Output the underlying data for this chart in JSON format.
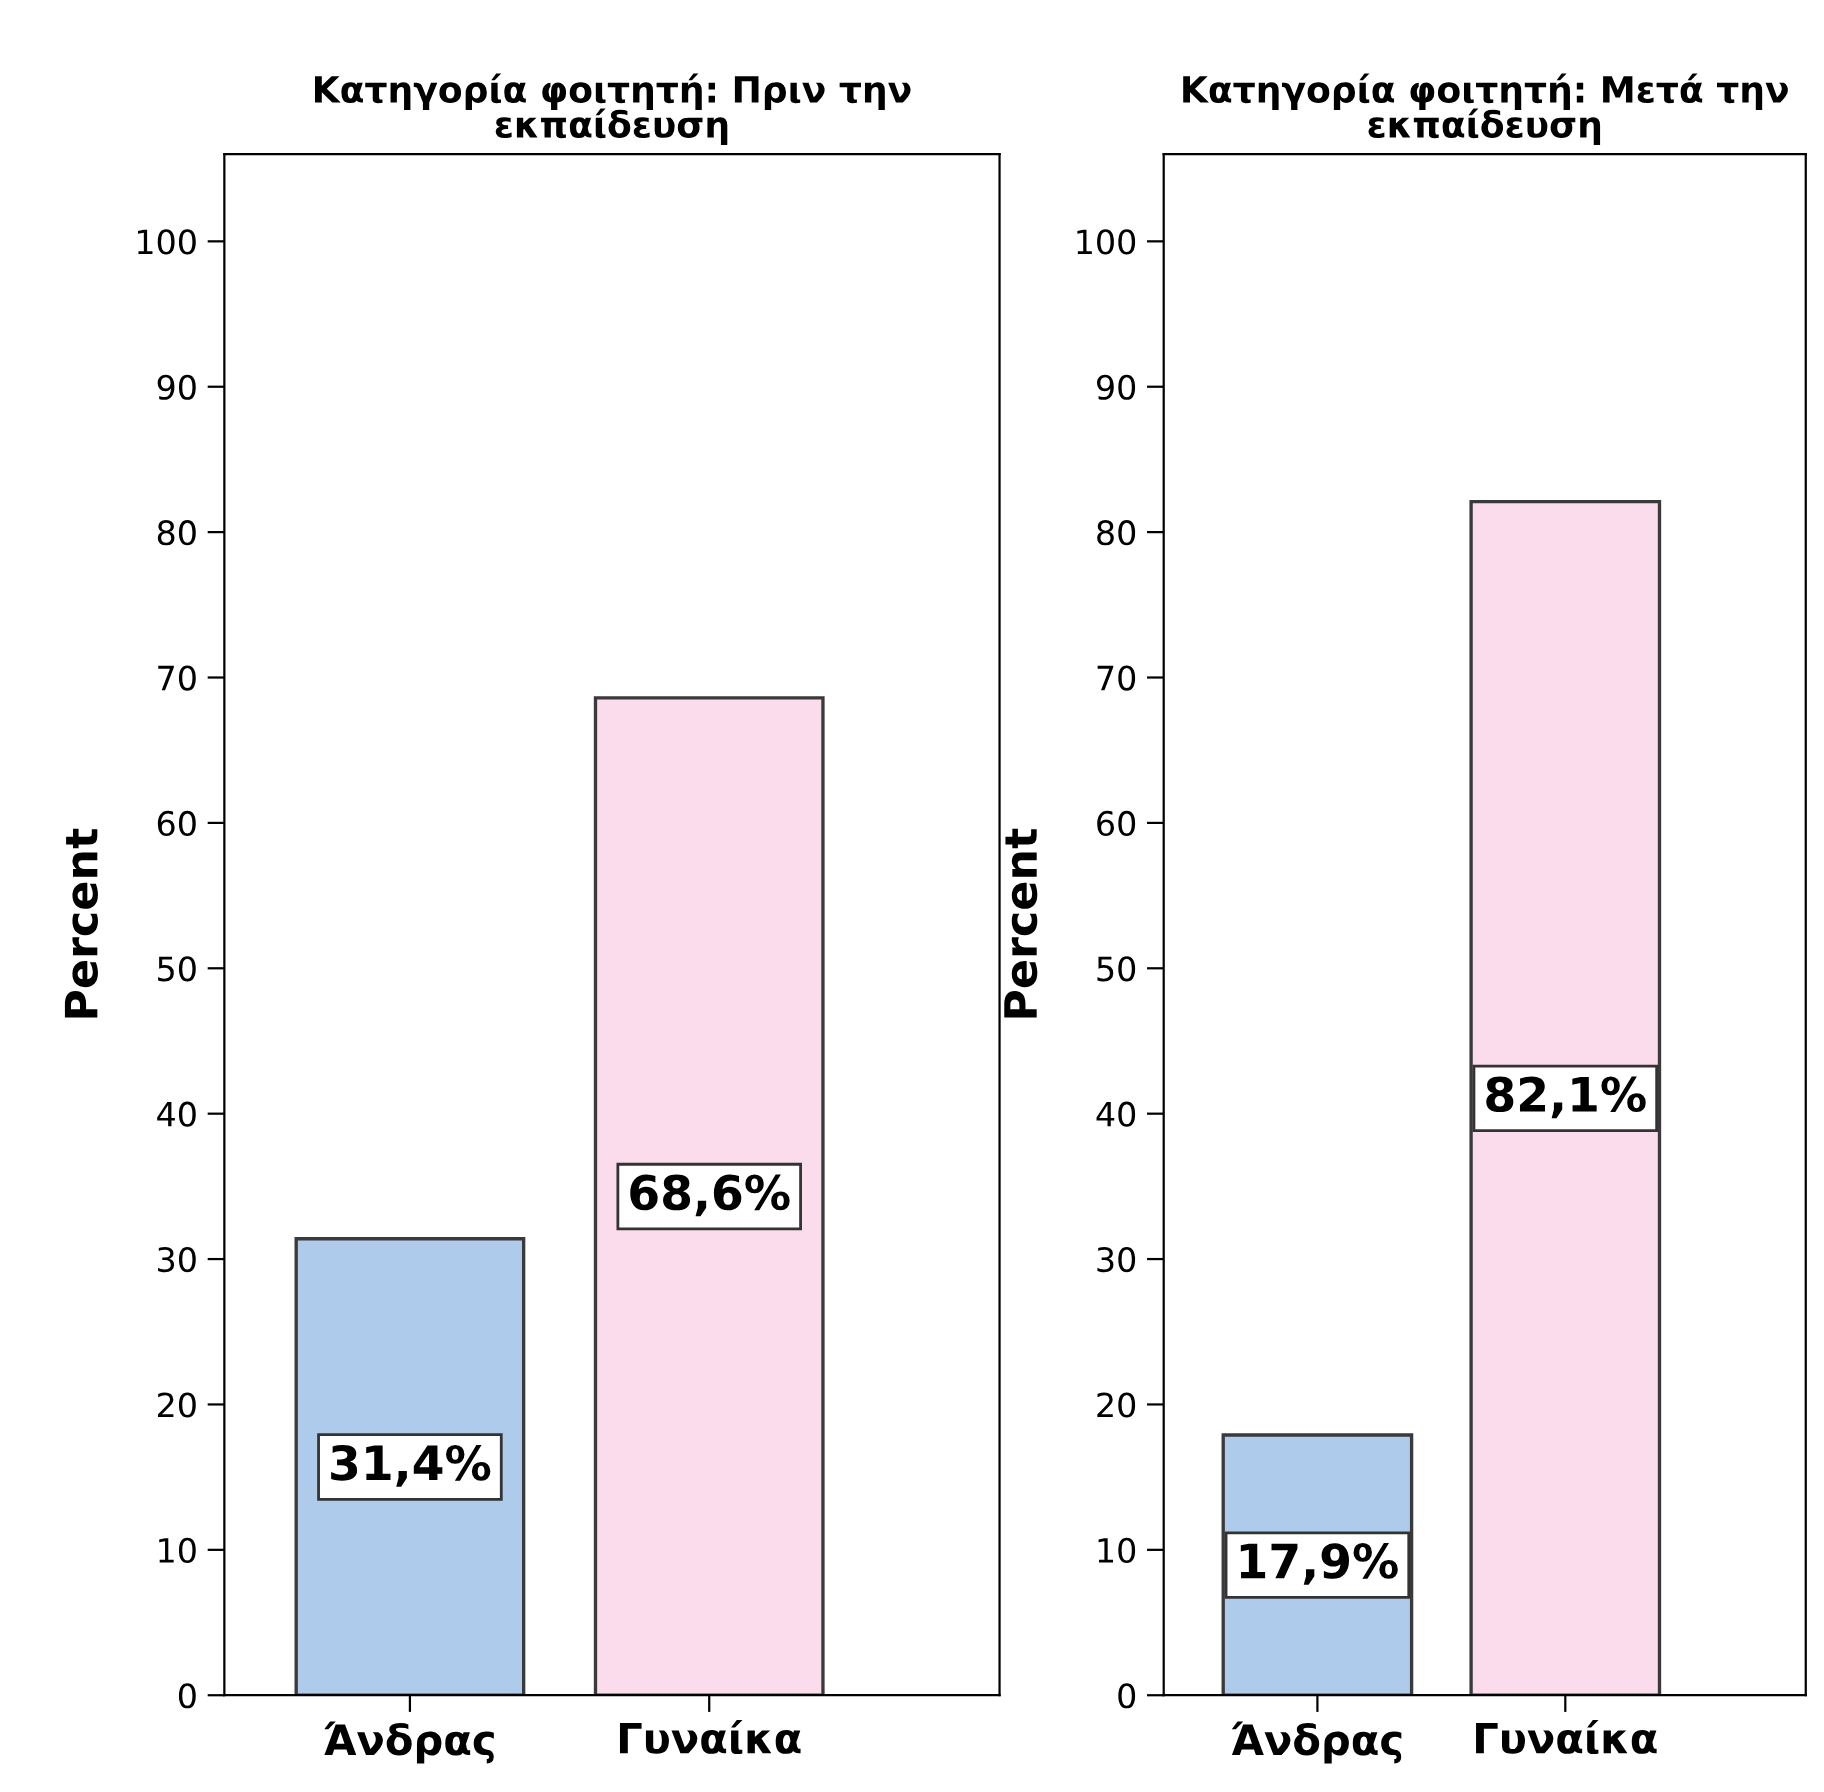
{
  "chart_data": [
    {
      "type": "bar",
      "title": "Κατηγορία φοιτητή: Πριν την\nεκπαίδευση",
      "ylabel": "Percent",
      "categories": [
        "Άνδρας",
        "Γυναίκα"
      ],
      "values": [
        31.4,
        68.6
      ],
      "colors": [
        "#aecbeb",
        "#fbdcec"
      ],
      "value_labels": [
        "31,4%",
        "68,6%"
      ],
      "ylim": [
        0,
        106
      ],
      "yticks": [
        0,
        10,
        20,
        30,
        40,
        50,
        60,
        70,
        80,
        90,
        100
      ],
      "grid": false,
      "legend": false
    },
    {
      "type": "bar",
      "title": "Κατηγορία φοιτητή: Μετά την\nεκπαίδευση",
      "ylabel": "Percent",
      "categories": [
        "Άνδρας",
        "Γυναίκα"
      ],
      "values": [
        17.9,
        82.1
      ],
      "colors": [
        "#aecbeb",
        "#fbdcec"
      ],
      "value_labels": [
        "17,9%",
        "82,1%"
      ],
      "ylim": [
        0,
        106
      ],
      "yticks": [
        0,
        10,
        20,
        30,
        40,
        50,
        60,
        70,
        80,
        90,
        100
      ],
      "grid": false,
      "legend": false
    }
  ]
}
